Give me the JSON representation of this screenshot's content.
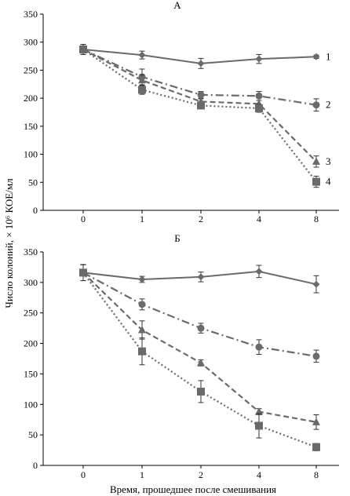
{
  "colors": {
    "series": "#6a6a6a",
    "axis": "#000000",
    "background": "#ffffff"
  },
  "figure": {
    "ylabel": "Число колоний, × 10⁶ КОЕ/мл",
    "xlabel": "Время, прошедшее после смешивания"
  },
  "chart_data": [
    {
      "type": "line",
      "title": "А",
      "categories": [
        "0",
        "1",
        "2",
        "4",
        "8"
      ],
      "ylim": [
        0,
        350
      ],
      "yticks": [
        "0",
        "50",
        "100",
        "150",
        "200",
        "250",
        "300",
        "350"
      ],
      "grid": false,
      "series": [
        {
          "name": "1",
          "marker": "diamond",
          "dash": "solid",
          "values": [
            287,
            277,
            262,
            270,
            274
          ],
          "errors": [
            9,
            7,
            9,
            8,
            3
          ]
        },
        {
          "name": "2",
          "marker": "circle",
          "dash": "dashdot",
          "values": [
            287,
            238,
            206,
            204,
            188
          ],
          "errors": [
            9,
            14,
            6,
            8,
            11
          ]
        },
        {
          "name": "3",
          "marker": "triangle",
          "dash": "dashed",
          "values": [
            287,
            232,
            194,
            190,
            87
          ],
          "errors": [
            9,
            10,
            5,
            6,
            10
          ]
        },
        {
          "name": "4",
          "marker": "square",
          "dash": "dotted",
          "values": [
            287,
            215,
            187,
            182,
            51
          ],
          "errors": [
            9,
            8,
            6,
            7,
            10
          ]
        }
      ]
    },
    {
      "type": "line",
      "title": "Б",
      "categories": [
        "0",
        "1",
        "2",
        "4",
        "8"
      ],
      "ylim": [
        0,
        350
      ],
      "yticks": [
        "0",
        "50",
        "100",
        "150",
        "200",
        "250",
        "300",
        "350"
      ],
      "grid": false,
      "series": [
        {
          "marker": "diamond",
          "dash": "solid",
          "values": [
            316,
            305,
            309,
            318,
            297
          ],
          "errors": [
            13,
            5,
            8,
            10,
            14
          ]
        },
        {
          "marker": "circle",
          "dash": "dashdot",
          "values": [
            316,
            264,
            225,
            194,
            179
          ],
          "errors": [
            13,
            9,
            8,
            12,
            10
          ]
        },
        {
          "marker": "triangle",
          "dash": "dashed",
          "values": [
            316,
            222,
            168,
            88,
            71
          ],
          "errors": [
            13,
            15,
            5,
            5,
            12
          ]
        },
        {
          "marker": "square",
          "dash": "dotted",
          "values": [
            316,
            187,
            121,
            65,
            30
          ],
          "errors": [
            13,
            22,
            18,
            20,
            6
          ]
        }
      ]
    }
  ]
}
